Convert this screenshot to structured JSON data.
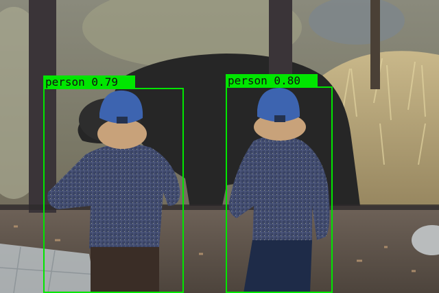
{
  "scene": {
    "description_colors": {
      "box_color": "#00e600",
      "glass_frame": "#3a3438",
      "bear_fur": "#252525",
      "jacket": "#3b4566",
      "cap": "#3d64b0"
    }
  },
  "detections": [
    {
      "id": "det-1",
      "label": "person",
      "score": "0.79",
      "text": "person 0.79"
    },
    {
      "id": "det-2",
      "label": "person",
      "score": "0.80",
      "text": "person 0.80"
    }
  ]
}
